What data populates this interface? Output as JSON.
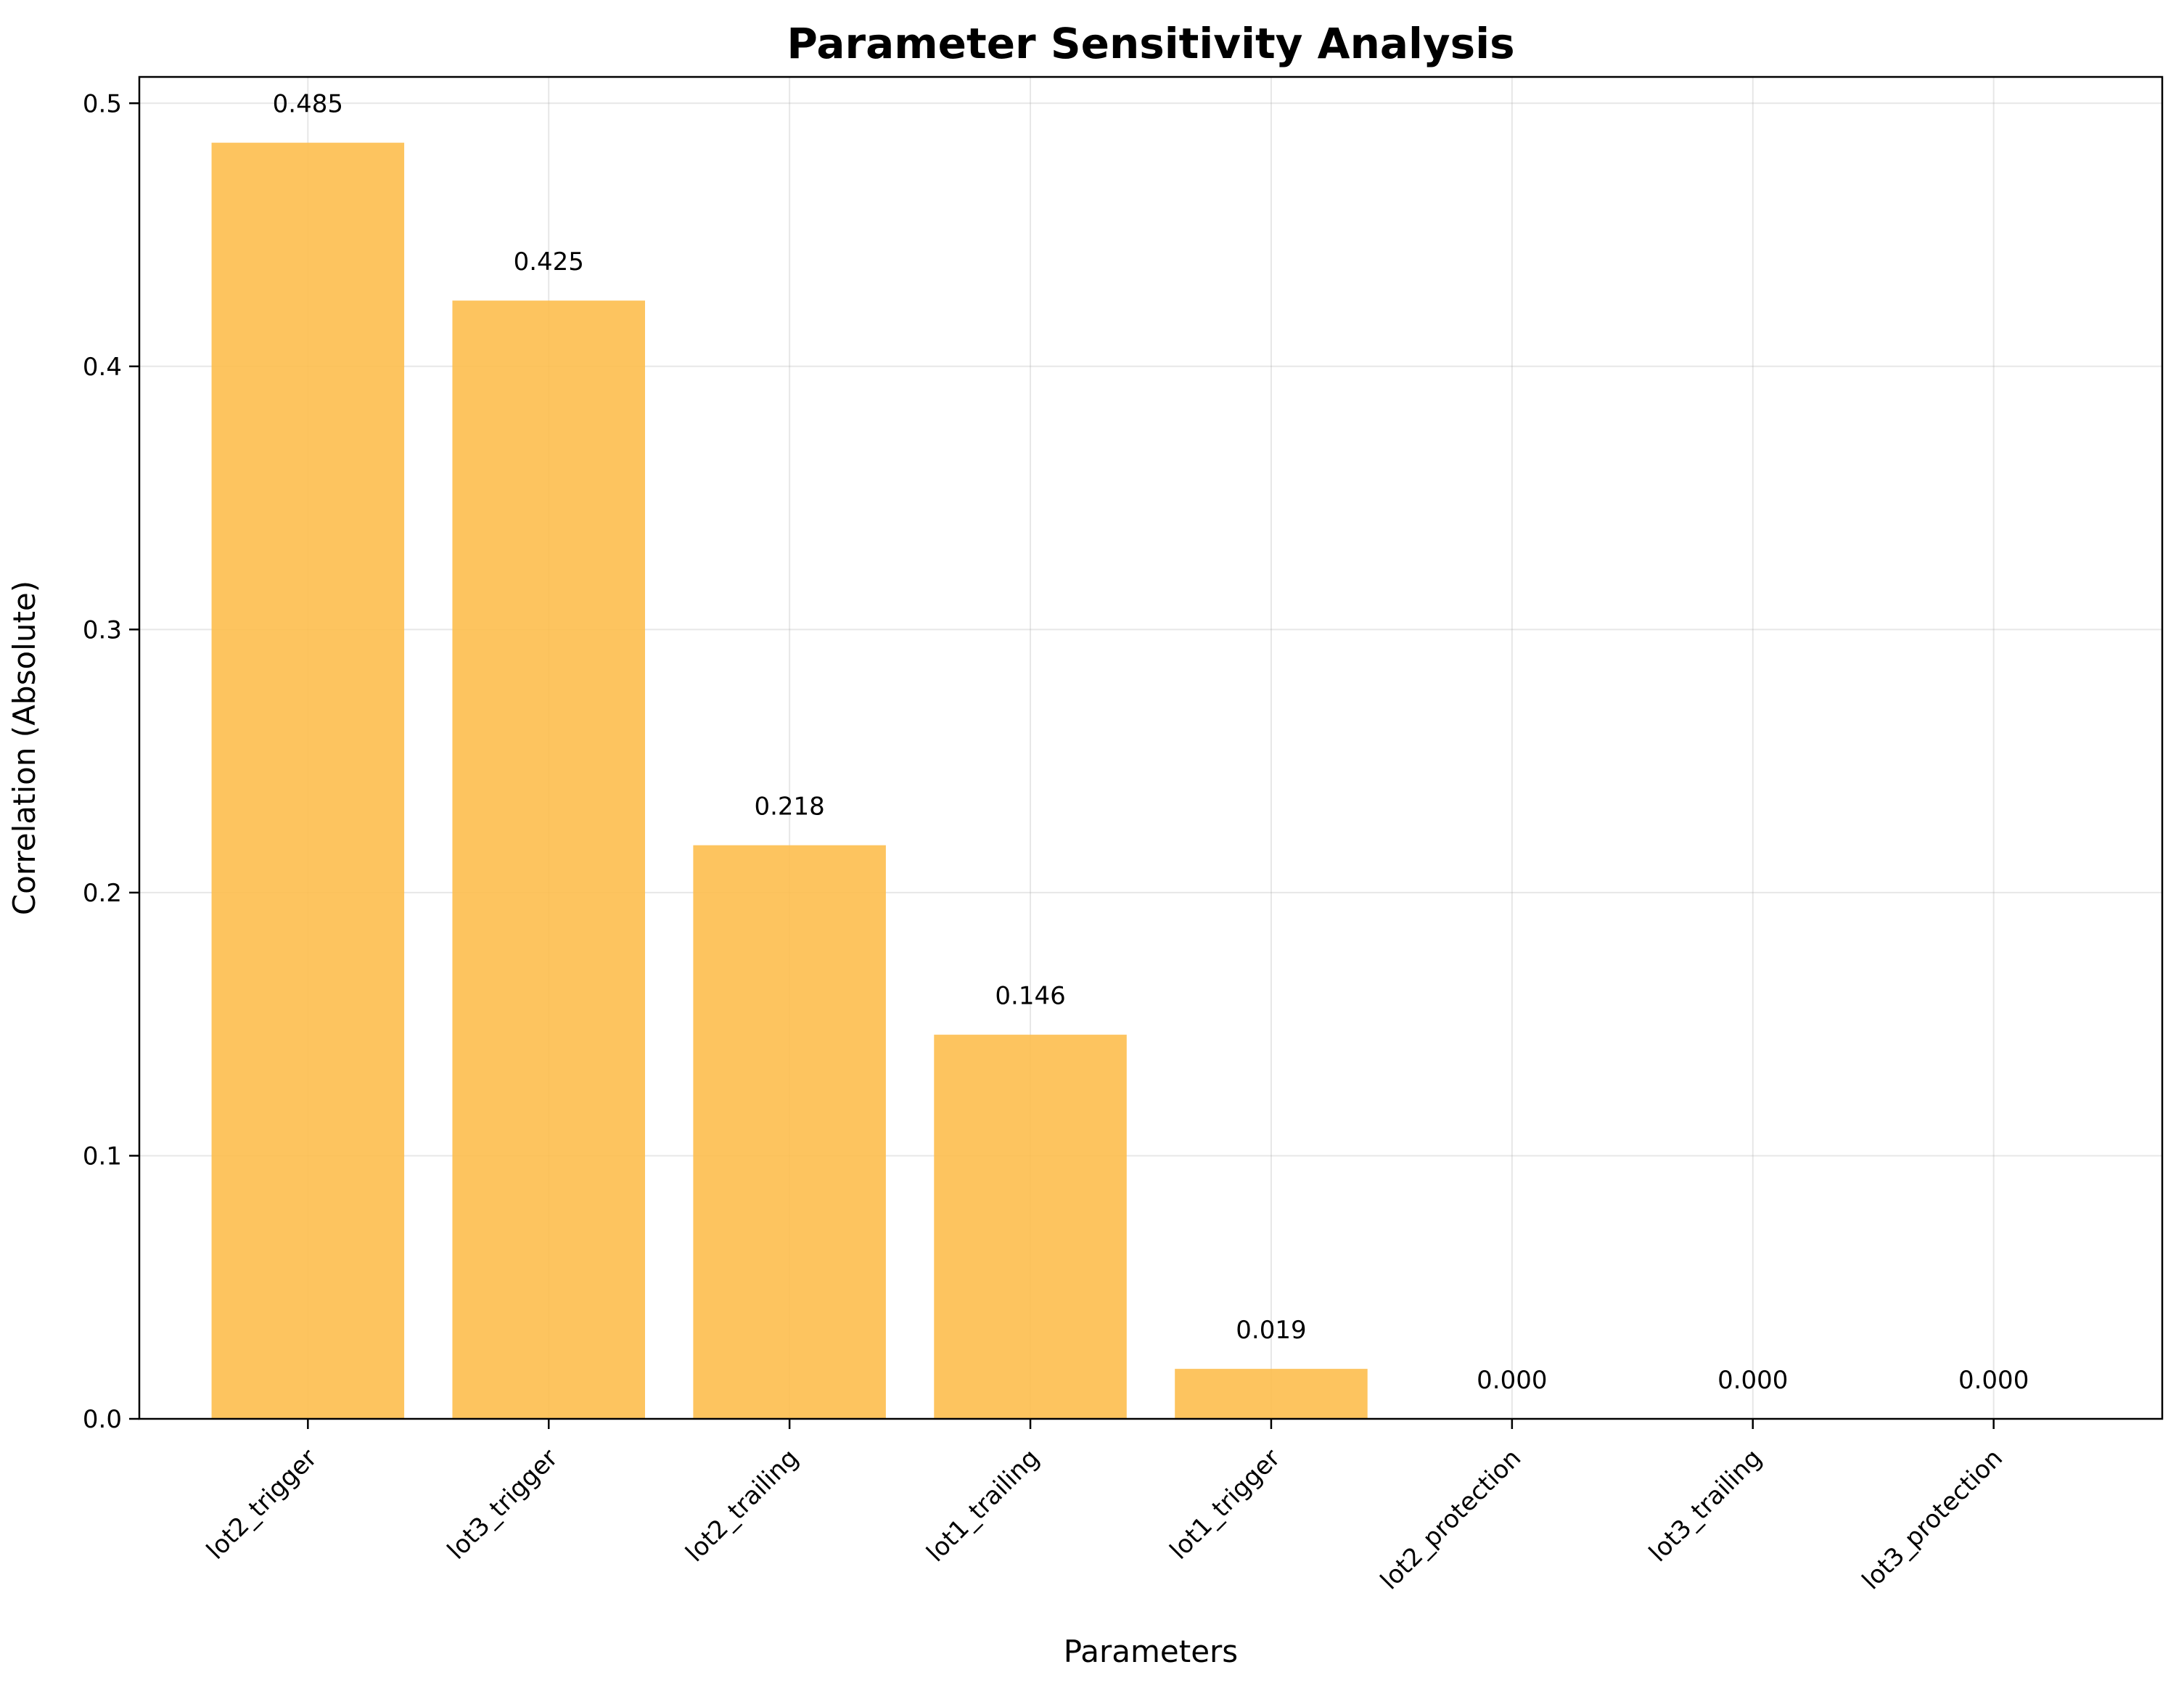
{
  "chart_data": {
    "type": "bar",
    "title": "Parameter Sensitivity Analysis",
    "xlabel": "Parameters",
    "ylabel": "Correlation (Absolute)",
    "categories": [
      "lot2_trigger",
      "lot3_trigger",
      "lot2_trailing",
      "lot1_trailing",
      "lot1_trigger",
      "lot2_protection",
      "lot3_trailing",
      "lot3_protection"
    ],
    "values": [
      0.485,
      0.425,
      0.218,
      0.146,
      0.019,
      0.0,
      0.0,
      0.0
    ],
    "value_labels": [
      "0.485",
      "0.425",
      "0.218",
      "0.146",
      "0.019",
      "0.000",
      "0.000",
      "0.000"
    ],
    "ylim": [
      0,
      0.51
    ],
    "yticks": [
      0.0,
      0.1,
      0.2,
      0.3,
      0.4,
      0.5
    ],
    "ytick_labels": [
      "0.0",
      "0.1",
      "0.2",
      "0.3",
      "0.4",
      "0.5"
    ],
    "bar_color": "#FDBE4E",
    "grid": true
  }
}
